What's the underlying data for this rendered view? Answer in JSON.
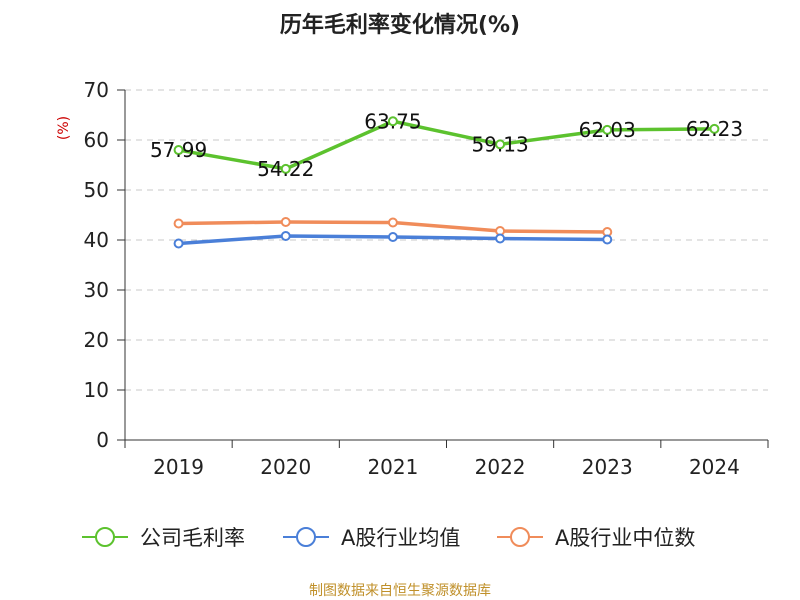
{
  "chart_data": {
    "type": "line",
    "title": "历年毛利率变化情况(%)",
    "ylabel": "(%)",
    "xlabel": "",
    "categories": [
      "2019",
      "2020",
      "2021",
      "2022",
      "2023",
      "2024"
    ],
    "ylim": [
      0,
      70
    ],
    "yticks": [
      0,
      10,
      20,
      30,
      40,
      50,
      60,
      70
    ],
    "grid": true,
    "legend_position": "bottom",
    "series": [
      {
        "name": "公司毛利率",
        "color": "#5cc22e",
        "values": [
          57.99,
          54.22,
          63.75,
          59.13,
          62.03,
          62.23
        ],
        "data_labels": [
          "57.99",
          "54.22",
          "63.75",
          "59.13",
          "62.03",
          "62.23"
        ]
      },
      {
        "name": "A股行业均值",
        "color": "#4a7fd8",
        "values": [
          39.3,
          40.8,
          40.6,
          40.3,
          40.1,
          null
        ]
      },
      {
        "name": "A股行业中位数",
        "color": "#f08c5a",
        "values": [
          43.3,
          43.6,
          43.5,
          41.8,
          41.6,
          null
        ]
      }
    ]
  },
  "footer": {
    "source": "制图数据来自恒生聚源数据库"
  }
}
